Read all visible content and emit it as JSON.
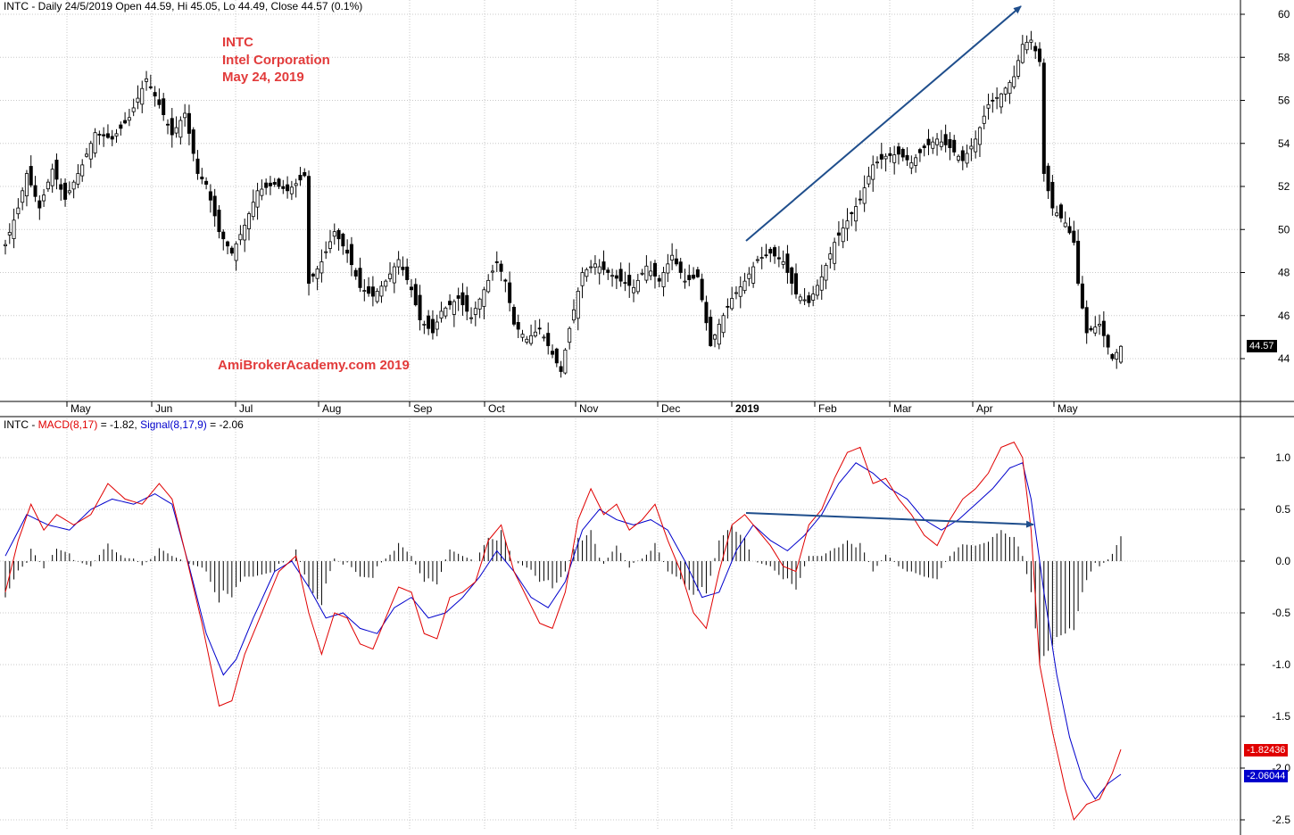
{
  "price_header": {
    "title": "INTC - Daily 24/5/2019 Open 44.59, Hi 45.05, Lo 44.49, Close 44.57 (0.1%)"
  },
  "annotation": {
    "ticker": "INTC",
    "company": "Intel Corporation",
    "date": "May 24, 2019",
    "watermark": "AmiBroker​Academy.com  2019"
  },
  "macd_header": {
    "prefix": "INTC - ",
    "macd_label": "MACD(8,17)",
    "macd_value": " = -1.82, ",
    "signal_label": "Signal(8,17,9)",
    "signal_value": " = -2.06"
  },
  "tags": {
    "last_price": "44.57",
    "macd_last": "-1.82436",
    "signal_last": "-2.06044"
  },
  "colors": {
    "candle": "#000000",
    "macd": "#e00000",
    "signal": "#0000cc",
    "histogram": "#000000",
    "trendline": "#1f4e8c",
    "grid": "#c8c8c8",
    "price_tag": "#000000",
    "macd_tag": "#e00000",
    "signal_tag": "#0000cc"
  },
  "chart_data": [
    {
      "type": "candlestick",
      "title": "INTC - Daily 24/5/2019",
      "ylim": [
        42,
        60.5
      ],
      "yticks": [
        44,
        46,
        48,
        50,
        52,
        54,
        56,
        58,
        60
      ],
      "x_labels": [
        "May",
        "Jun",
        "Jul",
        "Aug",
        "Sep",
        "Oct",
        "Nov",
        "Dec",
        "2019",
        "Feb",
        "Mar",
        "Apr",
        "May"
      ],
      "grid": true,
      "close_anchors": [
        [
          0,
          49.3
        ],
        [
          3,
          51.0
        ],
        [
          5,
          52.6
        ],
        [
          8,
          51.0
        ],
        [
          11,
          52.8
        ],
        [
          14,
          51.4
        ],
        [
          18,
          53.0
        ],
        [
          21,
          54.5
        ],
        [
          25,
          54.2
        ],
        [
          29,
          55.2
        ],
        [
          33,
          57.0
        ],
        [
          36,
          55.8
        ],
        [
          39,
          54.4
        ],
        [
          42,
          55.4
        ],
        [
          45,
          52.6
        ],
        [
          47,
          52.1
        ],
        [
          50,
          49.9
        ],
        [
          53,
          48.9
        ],
        [
          56,
          50.2
        ],
        [
          59,
          51.8
        ],
        [
          63,
          52.1
        ],
        [
          66,
          51.8
        ],
        [
          69,
          52.3
        ],
        [
          70,
          52.5
        ],
        [
          71,
          47.5
        ],
        [
          74,
          48.5
        ],
        [
          77,
          49.9
        ],
        [
          80,
          48.9
        ],
        [
          83,
          47.3
        ],
        [
          86,
          46.9
        ],
        [
          89,
          47.6
        ],
        [
          92,
          48.6
        ],
        [
          95,
          47.2
        ],
        [
          97,
          45.8
        ],
        [
          100,
          45.2
        ],
        [
          102,
          46.2
        ],
        [
          106,
          46.8
        ],
        [
          109,
          45.9
        ],
        [
          112,
          47.2
        ],
        [
          115,
          48.5
        ],
        [
          117,
          47.6
        ],
        [
          119,
          45.6
        ],
        [
          122,
          44.9
        ],
        [
          125,
          45.4
        ],
        [
          128,
          44.2
        ],
        [
          130,
          43.4
        ],
        [
          132,
          45.4
        ],
        [
          135,
          48.0
        ],
        [
          138,
          48.4
        ],
        [
          141,
          48.0
        ],
        [
          144,
          47.6
        ],
        [
          147,
          47.3
        ],
        [
          150,
          48.3
        ],
        [
          153,
          47.6
        ],
        [
          156,
          48.8
        ],
        [
          159,
          47.6
        ],
        [
          162,
          47.8
        ],
        [
          165,
          44.6
        ],
        [
          167,
          45.6
        ],
        [
          170,
          46.8
        ],
        [
          173,
          47.6
        ],
        [
          176,
          48.6
        ],
        [
          179,
          48.9
        ],
        [
          182,
          48.5
        ],
        [
          185,
          47.0
        ],
        [
          188,
          46.6
        ],
        [
          191,
          47.8
        ],
        [
          194,
          49.4
        ],
        [
          197,
          50.4
        ],
        [
          200,
          51.4
        ],
        [
          203,
          53.0
        ],
        [
          206,
          53.4
        ],
        [
          209,
          53.5
        ],
        [
          212,
          53.1
        ],
        [
          215,
          53.8
        ],
        [
          218,
          54.2
        ],
        [
          221,
          53.8
        ],
        [
          224,
          53.2
        ],
        [
          227,
          54.2
        ],
        [
          230,
          55.8
        ],
        [
          233,
          56.3
        ],
        [
          236,
          57.1
        ],
        [
          238,
          58.6
        ],
        [
          240,
          58.8
        ],
        [
          242,
          57.8
        ],
        [
          243,
          52.6
        ],
        [
          245,
          51.0
        ],
        [
          248,
          50.3
        ],
        [
          250,
          49.4
        ],
        [
          251,
          47.5
        ],
        [
          253,
          45.2
        ],
        [
          256,
          45.6
        ],
        [
          259,
          44.0
        ],
        [
          261,
          44.57
        ]
      ]
    },
    {
      "type": "line",
      "title": "MACD(8,17), Signal(8,17,9)",
      "ylim": [
        -2.6,
        1.25
      ],
      "yticks": [
        -2.5,
        -2.0,
        -1.5,
        -1.0,
        -0.5,
        0.0,
        0.5,
        1.0
      ],
      "grid": true,
      "series": [
        {
          "name": "MACD(8,17)",
          "last": -1.82
        },
        {
          "name": "Signal(8,17,9)",
          "last": -2.06
        }
      ],
      "macd_anchors": [
        [
          0,
          -0.3
        ],
        [
          3,
          0.2
        ],
        [
          6,
          0.55
        ],
        [
          9,
          0.3
        ],
        [
          12,
          0.45
        ],
        [
          16,
          0.35
        ],
        [
          20,
          0.45
        ],
        [
          24,
          0.75
        ],
        [
          28,
          0.6
        ],
        [
          32,
          0.55
        ],
        [
          36,
          0.75
        ],
        [
          39,
          0.6
        ],
        [
          42,
          0.1
        ],
        [
          46,
          -0.6
        ],
        [
          50,
          -1.4
        ],
        [
          53,
          -1.35
        ],
        [
          56,
          -0.9
        ],
        [
          60,
          -0.5
        ],
        [
          64,
          -0.1
        ],
        [
          68,
          0.05
        ],
        [
          71,
          -0.5
        ],
        [
          74,
          -0.9
        ],
        [
          77,
          -0.5
        ],
        [
          80,
          -0.55
        ],
        [
          83,
          -0.8
        ],
        [
          86,
          -0.85
        ],
        [
          89,
          -0.55
        ],
        [
          92,
          -0.25
        ],
        [
          95,
          -0.3
        ],
        [
          98,
          -0.7
        ],
        [
          101,
          -0.75
        ],
        [
          104,
          -0.35
        ],
        [
          107,
          -0.3
        ],
        [
          110,
          -0.2
        ],
        [
          113,
          0.2
        ],
        [
          116,
          0.35
        ],
        [
          119,
          -0.1
        ],
        [
          122,
          -0.35
        ],
        [
          125,
          -0.6
        ],
        [
          128,
          -0.65
        ],
        [
          131,
          -0.3
        ],
        [
          134,
          0.4
        ],
        [
          137,
          0.7
        ],
        [
          140,
          0.45
        ],
        [
          143,
          0.55
        ],
        [
          146,
          0.3
        ],
        [
          149,
          0.4
        ],
        [
          152,
          0.55
        ],
        [
          155,
          0.2
        ],
        [
          158,
          -0.1
        ],
        [
          161,
          -0.5
        ],
        [
          164,
          -0.65
        ],
        [
          167,
          -0.1
        ],
        [
          170,
          0.35
        ],
        [
          173,
          0.45
        ],
        [
          176,
          0.3
        ],
        [
          179,
          0.15
        ],
        [
          182,
          -0.05
        ],
        [
          185,
          -0.1
        ],
        [
          188,
          0.35
        ],
        [
          191,
          0.5
        ],
        [
          194,
          0.8
        ],
        [
          197,
          1.05
        ],
        [
          200,
          1.1
        ],
        [
          203,
          0.75
        ],
        [
          206,
          0.8
        ],
        [
          209,
          0.6
        ],
        [
          212,
          0.45
        ],
        [
          215,
          0.25
        ],
        [
          218,
          0.15
        ],
        [
          221,
          0.4
        ],
        [
          224,
          0.6
        ],
        [
          227,
          0.7
        ],
        [
          230,
          0.85
        ],
        [
          233,
          1.1
        ],
        [
          236,
          1.15
        ],
        [
          238,
          1.0
        ],
        [
          240,
          0.3
        ],
        [
          242,
          -1.0
        ],
        [
          245,
          -1.65
        ],
        [
          248,
          -2.2
        ],
        [
          250,
          -2.5
        ],
        [
          253,
          -2.35
        ],
        [
          256,
          -2.3
        ],
        [
          259,
          -2.05
        ],
        [
          261,
          -1.82
        ]
      ],
      "signal_anchors": [
        [
          0,
          0.05
        ],
        [
          5,
          0.45
        ],
        [
          10,
          0.35
        ],
        [
          15,
          0.3
        ],
        [
          20,
          0.5
        ],
        [
          25,
          0.6
        ],
        [
          30,
          0.55
        ],
        [
          35,
          0.65
        ],
        [
          39,
          0.55
        ],
        [
          43,
          -0.05
        ],
        [
          47,
          -0.7
        ],
        [
          51,
          -1.1
        ],
        [
          54,
          -0.95
        ],
        [
          58,
          -0.55
        ],
        [
          63,
          -0.1
        ],
        [
          67,
          0.0
        ],
        [
          71,
          -0.25
        ],
        [
          75,
          -0.55
        ],
        [
          79,
          -0.5
        ],
        [
          83,
          -0.65
        ],
        [
          87,
          -0.7
        ],
        [
          91,
          -0.45
        ],
        [
          95,
          -0.35
        ],
        [
          99,
          -0.55
        ],
        [
          103,
          -0.5
        ],
        [
          107,
          -0.35
        ],
        [
          111,
          -0.15
        ],
        [
          115,
          0.1
        ],
        [
          119,
          -0.1
        ],
        [
          123,
          -0.35
        ],
        [
          127,
          -0.45
        ],
        [
          131,
          -0.2
        ],
        [
          135,
          0.3
        ],
        [
          139,
          0.5
        ],
        [
          143,
          0.4
        ],
        [
          147,
          0.35
        ],
        [
          151,
          0.4
        ],
        [
          155,
          0.3
        ],
        [
          159,
          0.0
        ],
        [
          163,
          -0.35
        ],
        [
          167,
          -0.3
        ],
        [
          171,
          0.1
        ],
        [
          175,
          0.35
        ],
        [
          179,
          0.2
        ],
        [
          183,
          0.1
        ],
        [
          187,
          0.25
        ],
        [
          191,
          0.45
        ],
        [
          195,
          0.75
        ],
        [
          199,
          0.95
        ],
        [
          203,
          0.85
        ],
        [
          207,
          0.7
        ],
        [
          211,
          0.6
        ],
        [
          215,
          0.4
        ],
        [
          219,
          0.3
        ],
        [
          223,
          0.4
        ],
        [
          227,
          0.55
        ],
        [
          231,
          0.7
        ],
        [
          235,
          0.9
        ],
        [
          238,
          0.95
        ],
        [
          240,
          0.6
        ],
        [
          243,
          -0.3
        ],
        [
          246,
          -1.1
        ],
        [
          249,
          -1.7
        ],
        [
          252,
          -2.1
        ],
        [
          255,
          -2.3
        ],
        [
          258,
          -2.15
        ],
        [
          261,
          -2.06
        ]
      ]
    }
  ]
}
